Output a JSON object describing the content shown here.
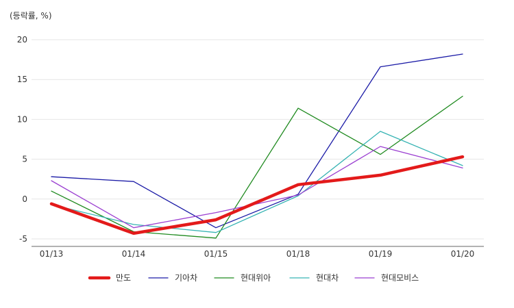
{
  "chart_data": {
    "type": "line",
    "unit_label": "(등락률, %)",
    "categories": [
      "01/13",
      "01/14",
      "01/15",
      "01/18",
      "01/19",
      "01/20"
    ],
    "ylim": [
      -5,
      20
    ],
    "yticks": [
      -5,
      0,
      5,
      10,
      15,
      20
    ],
    "grid": true,
    "legend_position": "bottom",
    "series": [
      {
        "name": "만도",
        "color": "#e31a1a",
        "emphasis": true,
        "values": [
          -0.6,
          -4.3,
          -2.6,
          1.8,
          3.0,
          5.3
        ]
      },
      {
        "name": "기아차",
        "color": "#1a1aa6",
        "emphasis": false,
        "values": [
          2.8,
          2.2,
          -3.6,
          0.6,
          16.6,
          18.2
        ]
      },
      {
        "name": "현대위아",
        "color": "#1f8a1f",
        "emphasis": false,
        "values": [
          1.0,
          -4.1,
          -4.9,
          11.4,
          5.6,
          12.9
        ]
      },
      {
        "name": "현대차",
        "color": "#36b3b3",
        "emphasis": false,
        "values": [
          -0.7,
          -3.2,
          -4.2,
          0.4,
          8.5,
          4.2
        ]
      },
      {
        "name": "현대모비스",
        "color": "#9b3fd1",
        "emphasis": false,
        "values": [
          2.3,
          -3.6,
          -1.7,
          0.5,
          6.6,
          3.9
        ]
      }
    ]
  }
}
